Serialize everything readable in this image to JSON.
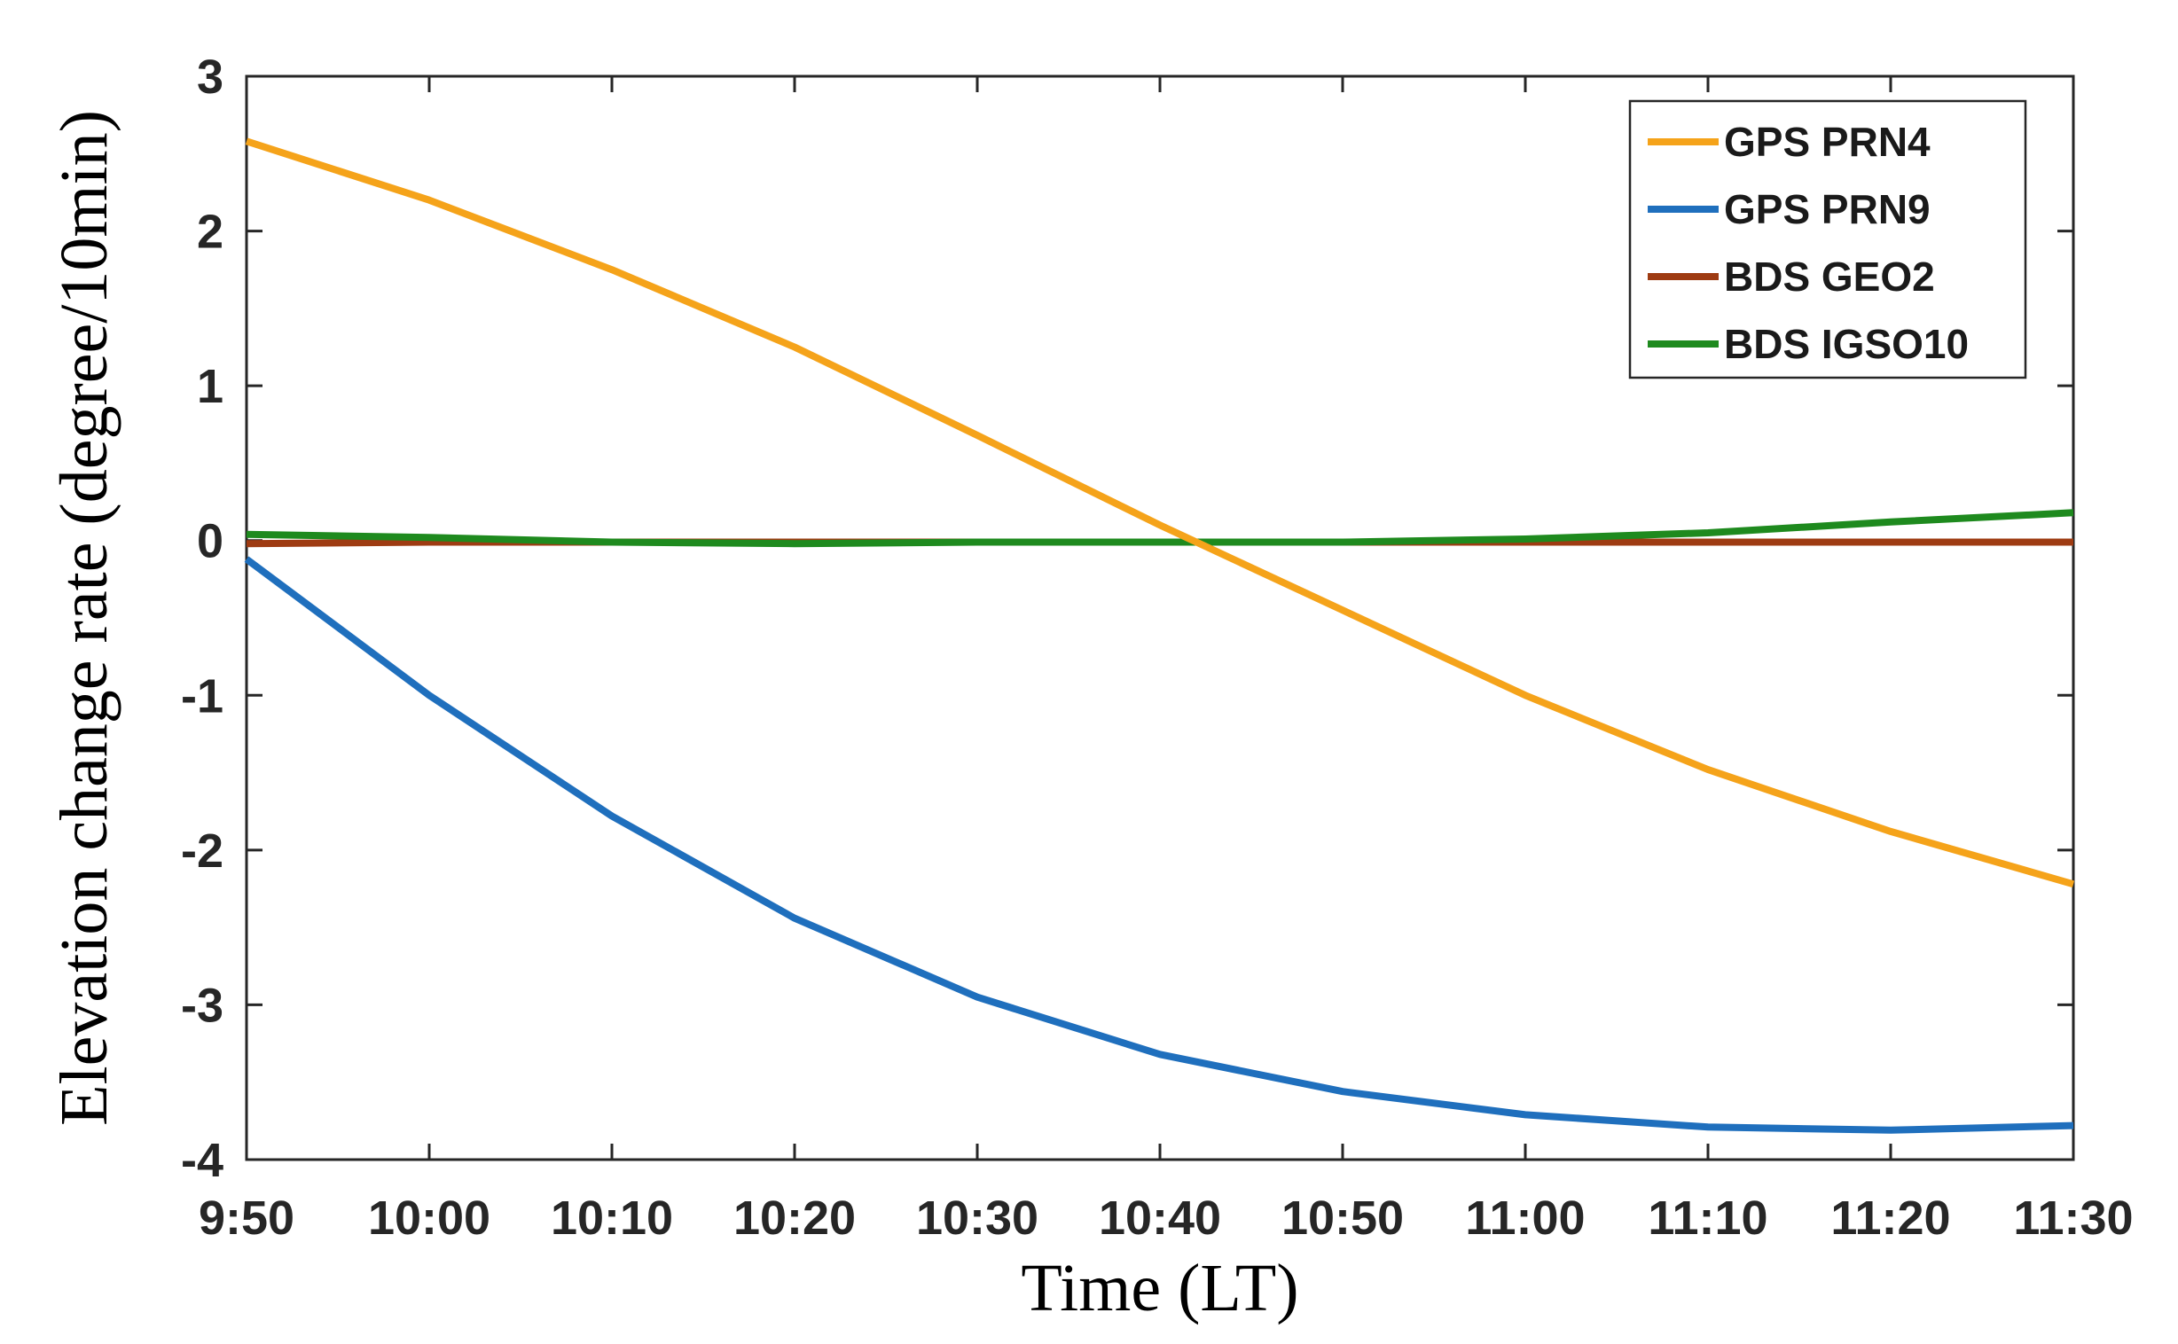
{
  "chart_data": {
    "type": "line",
    "xlabel": "Time (LT)",
    "ylabel": "Elevation change rate (degree/10min)",
    "x": [
      "9:50",
      "10:00",
      "10:10",
      "10:20",
      "10:30",
      "10:40",
      "10:50",
      "11:00",
      "11:10",
      "11:20",
      "11:30"
    ],
    "xlim": [
      "9:50",
      "11:30"
    ],
    "ylim": [
      -4,
      3
    ],
    "yticks": [
      "3",
      "2",
      "1",
      "0",
      "-1",
      "-2",
      "-3",
      "-4"
    ],
    "grid": false,
    "legend_position": "top-right",
    "series": [
      {
        "name": "GPS PRN4",
        "color": "#f5a31a",
        "values": [
          2.58,
          2.2,
          1.75,
          1.25,
          0.68,
          0.1,
          -0.45,
          -1.0,
          -1.48,
          -1.88,
          -2.22
        ]
      },
      {
        "name": "GPS PRN9",
        "color": "#1f6fbd",
        "values": [
          -0.12,
          -1.0,
          -1.78,
          -2.44,
          -2.95,
          -3.32,
          -3.56,
          -3.71,
          -3.79,
          -3.81,
          -3.78
        ]
      },
      {
        "name": "BDS GEO2",
        "color": "#9e3b12",
        "values": [
          -0.02,
          -0.01,
          -0.01,
          -0.01,
          -0.01,
          -0.01,
          -0.01,
          -0.01,
          -0.01,
          -0.01,
          -0.01
        ]
      },
      {
        "name": "BDS IGSO10",
        "color": "#1e8a1e",
        "values": [
          0.04,
          0.02,
          -0.01,
          -0.02,
          -0.01,
          -0.01,
          -0.01,
          0.01,
          0.05,
          0.12,
          0.18
        ]
      }
    ]
  }
}
